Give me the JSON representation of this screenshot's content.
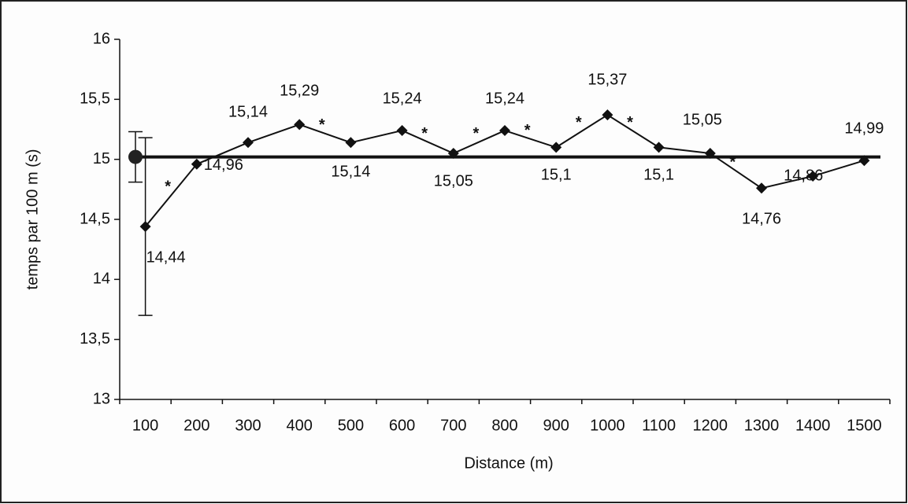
{
  "chart_data": {
    "type": "line",
    "x_label": "Distance (m)",
    "y_label": "temps par 100 m (s)",
    "categories": [
      "100",
      "200",
      "300",
      "400",
      "500",
      "600",
      "700",
      "800",
      "900",
      "1000",
      "1100",
      "1200",
      "1300",
      "1400",
      "1500"
    ],
    "series": [
      {
        "color": "#111111",
        "values": [
          14.44,
          14.96,
          15.14,
          15.29,
          15.14,
          15.24,
          15.05,
          15.24,
          15.1,
          15.37,
          15.1,
          15.05,
          14.76,
          14.86,
          14.99
        ],
        "value_labels": [
          "14,44",
          "14,96",
          "15,14",
          "15,29",
          "15,14",
          "15,24",
          "15,05",
          "15,24",
          "15,1",
          "15,37",
          "15,1",
          "15,05",
          "14,76",
          "14,86",
          "14,99"
        ],
        "errors": [
          0.74,
          null,
          null,
          null,
          null,
          null,
          null,
          null,
          null,
          null,
          null,
          null,
          null,
          null,
          null
        ]
      }
    ],
    "reference": {
      "value": 15.02,
      "error": 0.21,
      "color": "#111111"
    },
    "annotations": [
      {
        "text": "*",
        "from": "100",
        "to": "200"
      },
      {
        "text": "*",
        "from": "400",
        "to": "500"
      },
      {
        "text": "*",
        "from": "600",
        "to": "700"
      },
      {
        "text": "*",
        "from": "700",
        "to": "800"
      },
      {
        "text": "*",
        "from": "800",
        "to": "900"
      },
      {
        "text": "*",
        "from": "900",
        "to": "1000"
      },
      {
        "text": "*",
        "from": "1000",
        "to": "1100"
      },
      {
        "text": "*",
        "from": "1200",
        "to": "1300"
      }
    ],
    "ylim": [
      13,
      16
    ],
    "yticks": [
      13,
      {
        "value": 13.5,
        "label": "13,5"
      },
      14,
      {
        "value": 14.5,
        "label": "14,5"
      },
      15,
      {
        "value": 15.5,
        "label": "15,5"
      },
      16
    ]
  }
}
